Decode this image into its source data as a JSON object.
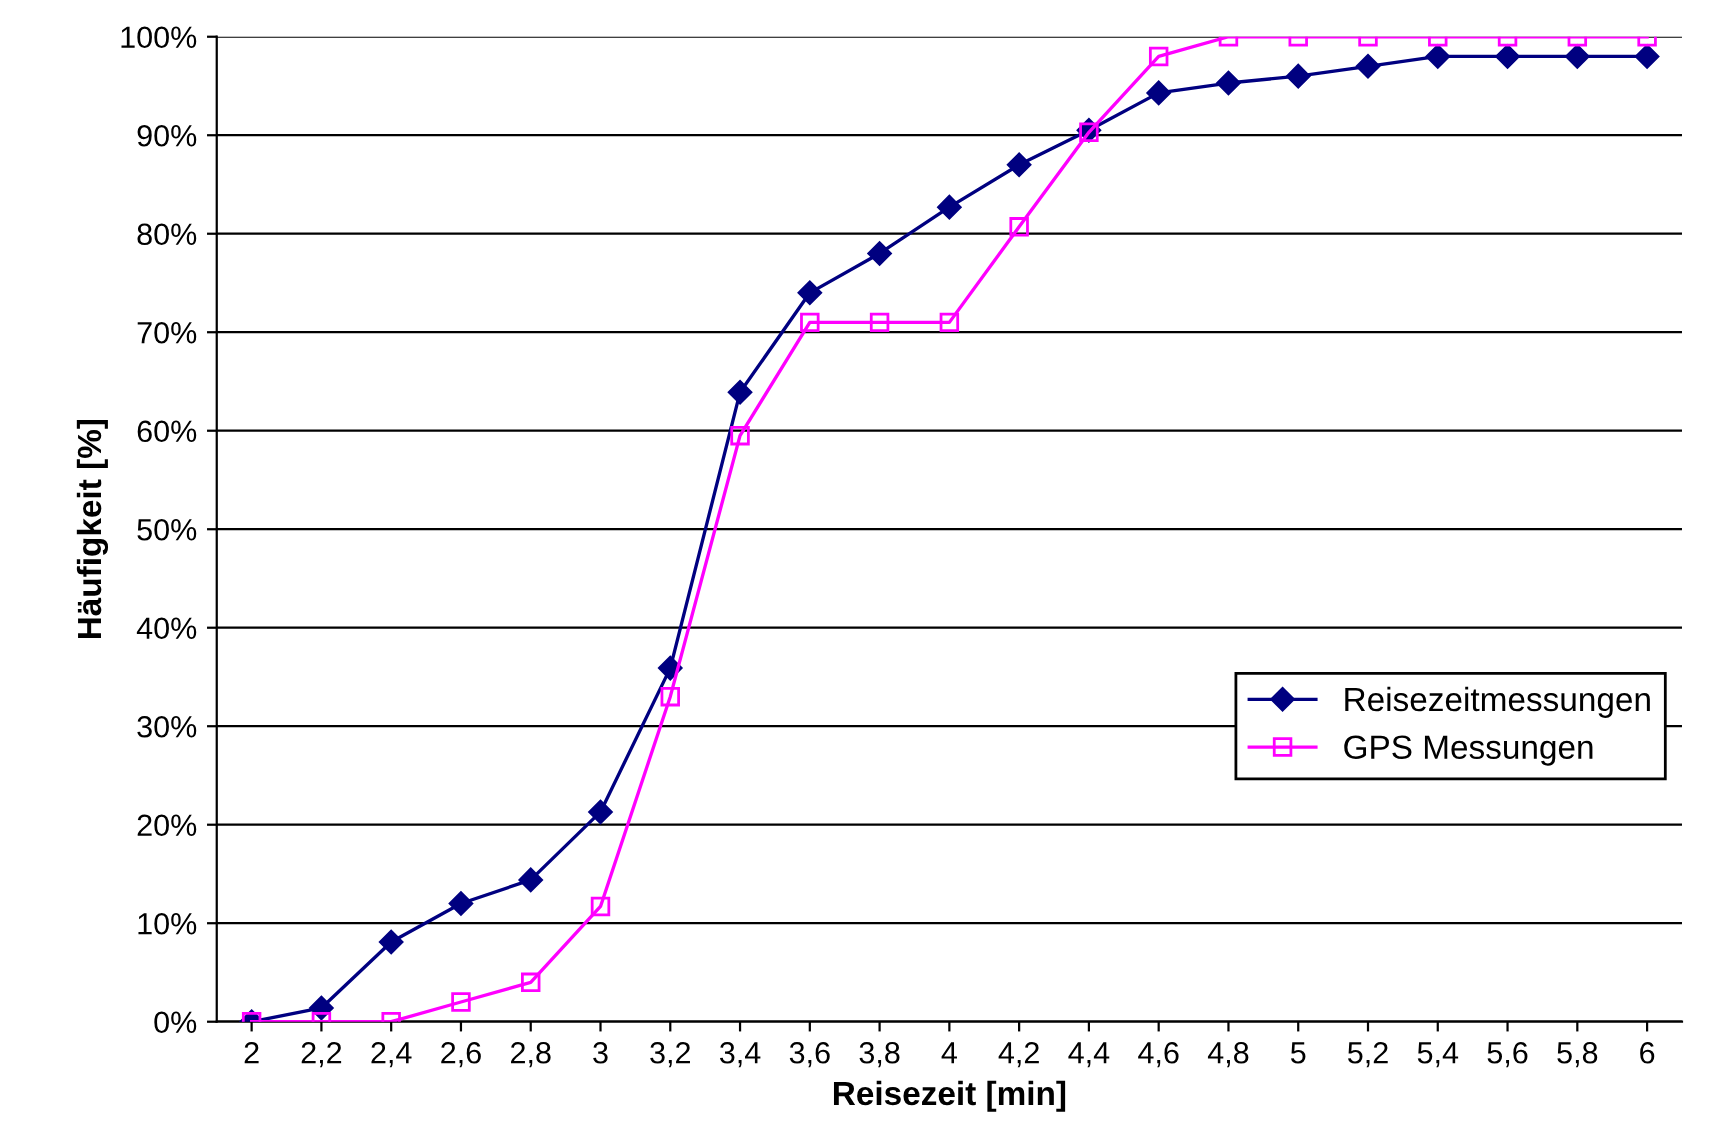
{
  "chart_data": {
    "type": "line",
    "xlabel": "Reisezeit [min]",
    "ylabel": "Häufigkeit [%]",
    "categories": [
      "2",
      "2,2",
      "2,4",
      "2,6",
      "2,8",
      "3",
      "3,2",
      "3,4",
      "3,6",
      "3,8",
      "4",
      "4,2",
      "4,4",
      "4,6",
      "4,8",
      "5",
      "5,2",
      "5,4",
      "5,6",
      "5,8",
      "6"
    ],
    "series": [
      {
        "name": "Reisezeitmessungen",
        "color": "#000080",
        "marker": "diamond",
        "values": [
          0,
          1.4,
          8.1,
          12,
          14.4,
          21.3,
          35.9,
          63.9,
          74,
          78,
          82.7,
          87,
          90.5,
          94.3,
          95.3,
          96,
          97,
          98,
          98,
          98,
          98
        ]
      },
      {
        "name": "GPS Messungen",
        "color": "#ff00ff",
        "marker": "square",
        "values": [
          0,
          0,
          0,
          2,
          4,
          11.7,
          33,
          59.5,
          71,
          71,
          71,
          80.7,
          90.3,
          98,
          100,
          100,
          100,
          100,
          100,
          100,
          100
        ]
      }
    ],
    "ylim": [
      0,
      100
    ],
    "yticks": [
      {
        "value": 0,
        "label": "0%"
      },
      {
        "value": 10,
        "label": "10%"
      },
      {
        "value": 20,
        "label": "20%"
      },
      {
        "value": 30,
        "label": "30%"
      },
      {
        "value": 40,
        "label": "40%"
      },
      {
        "value": 50,
        "label": "50%"
      },
      {
        "value": 60,
        "label": "60%"
      },
      {
        "value": 70,
        "label": "70%"
      },
      {
        "value": 80,
        "label": "80%"
      },
      {
        "value": 90,
        "label": "90%"
      },
      {
        "value": 100,
        "label": "100%"
      }
    ],
    "grid": "y",
    "legend": "right",
    "line_style": "solid"
  }
}
